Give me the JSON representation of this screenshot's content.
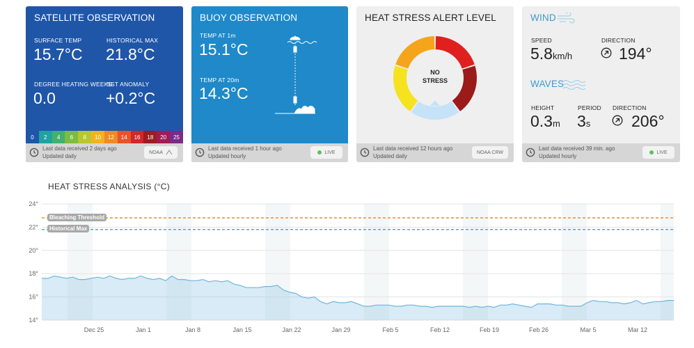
{
  "satellite": {
    "title": "SATELLITE OBSERVATION",
    "surface_temp_label": "SURFACE TEMP",
    "surface_temp_value": "15.7°C",
    "historical_max_label": "HISTORICAL MAX",
    "historical_max_value": "21.8°C",
    "dhw_label": "DEGREE HEATING WEEKS",
    "dhw_value": "0.0",
    "sst_anomaly_label": "SST ANOMALY",
    "sst_anomaly_value": "+0.2°C",
    "scale": [
      {
        "label": "0",
        "color": "#1e57a9"
      },
      {
        "label": "2",
        "color": "#1ea39e"
      },
      {
        "label": "4",
        "color": "#42b06e"
      },
      {
        "label": "6",
        "color": "#7bbd3e"
      },
      {
        "label": "8",
        "color": "#b8c72b"
      },
      {
        "label": "10",
        "color": "#f3b31d"
      },
      {
        "label": "12",
        "color": "#f08a22"
      },
      {
        "label": "14",
        "color": "#e9532b"
      },
      {
        "label": "16",
        "color": "#d2272b"
      },
      {
        "label": "18",
        "color": "#9b1d20"
      },
      {
        "label": "20",
        "color": "#a01c55"
      },
      {
        "label": "25",
        "color": "#7b2a86"
      }
    ],
    "footer_line1": "Last data received 2 days ago",
    "footer_line2": "Updated daily",
    "badge": "NOAA"
  },
  "buoy": {
    "title": "BUOY OBSERVATION",
    "temp_1m_label": "TEMP AT 1m",
    "temp_1m_value": "15.1°C",
    "temp_20m_label": "TEMP AT 20m",
    "temp_20m_value": "14.3°C",
    "footer_line1": "Last data received 1 hour ago",
    "footer_line2": "Updated hourly",
    "badge": "LIVE"
  },
  "alert": {
    "title": "HEAT STRESS ALERT LEVEL",
    "center_line1": "NO",
    "center_line2": "STRESS",
    "segments": [
      {
        "name": "no-stress",
        "color": "#c6e2f7"
      },
      {
        "name": "alert-level-2",
        "color": "#9b1b1b"
      },
      {
        "name": "alert-level-1",
        "color": "#e0201f"
      },
      {
        "name": "warning",
        "color": "#f4a51c"
      },
      {
        "name": "watch",
        "color": "#f6e21e"
      }
    ],
    "footer_line1": "Last data received 12 hours ago",
    "footer_line2": "Updated daily",
    "badge": "NOAA CRW"
  },
  "wind": {
    "title": "WIND",
    "speed_label": "SPEED",
    "speed_value": "5.8",
    "speed_unit": "km/h",
    "direction_label": "DIRECTION",
    "direction_value": "194°",
    "waves_title": "WAVES",
    "height_label": "HEIGHT",
    "height_value": "0.3",
    "height_unit": "m",
    "period_label": "PERIOD",
    "period_value": "3",
    "period_unit": "s",
    "wave_direction_label": "DIRECTION",
    "wave_direction_value": "206°",
    "accent": "#3c9ad1",
    "footer_line1": "Last data received 39 min. ago",
    "footer_line2": "Updated hourly",
    "badge": "LIVE"
  },
  "chart_data": {
    "type": "area",
    "title": "HEAT STRESS ANALYSIS (°C)",
    "ylim": [
      14,
      24
    ],
    "yticks": [
      14,
      16,
      18,
      20,
      22,
      24
    ],
    "ytick_labels": [
      "14°",
      "16°",
      "18°",
      "20°",
      "22°",
      "24°"
    ],
    "x_tick_labels": [
      "Dec 25",
      "Jan 1",
      "Jan 8",
      "Jan 15",
      "Jan 22",
      "Jan 29",
      "Feb 5",
      "Feb 12",
      "Feb 19",
      "Feb 26",
      "Mar 5",
      "Mar 12"
    ],
    "x_start": "Dec 19",
    "x_end": "Mar 17",
    "bleaching_threshold": {
      "label": "Bleaching Threshold",
      "value": 22.8,
      "color": "#f0882b"
    },
    "historical_max": {
      "label": "Historical Max",
      "value": 21.8,
      "color": "#3bb4c1"
    },
    "series_color": "#8ec7e4",
    "series": [
      {
        "values": [
          17.6,
          17.6,
          17.8,
          17.7,
          17.6,
          17.7,
          17.5,
          17.5,
          17.6,
          17.7,
          17.6,
          17.8,
          17.6,
          17.5,
          17.6,
          17.6,
          17.8,
          17.6,
          17.5,
          17.6,
          17.4,
          17.8,
          17.5,
          17.5,
          17.4,
          17.4,
          17.5,
          17.3,
          17.4,
          17.3,
          17.4,
          17.1,
          17.0,
          16.8,
          16.8,
          16.8,
          16.9,
          16.9,
          17.0,
          16.6,
          16.4,
          16.3,
          16.0,
          15.9,
          16.0,
          15.6,
          15.4,
          15.6,
          15.5,
          15.5,
          15.6,
          15.4,
          15.2,
          15.2,
          15.3,
          15.3,
          15.3,
          15.2,
          15.2,
          15.3,
          15.3,
          15.2,
          15.2,
          15.1,
          15.2,
          15.2,
          15.2,
          15.2,
          15.2,
          15.1,
          15.2,
          15.1,
          15.2,
          15.1,
          15.3,
          15.3,
          15.4,
          15.3,
          15.2,
          15.1,
          15.4,
          15.4,
          15.4,
          15.3,
          15.3,
          15.2,
          15.2,
          15.2,
          15.5,
          15.7,
          15.6,
          15.6,
          15.5,
          15.5,
          15.4,
          15.5,
          15.7,
          15.4,
          15.5,
          15.6,
          15.6,
          15.7,
          15.7
        ]
      }
    ]
  }
}
